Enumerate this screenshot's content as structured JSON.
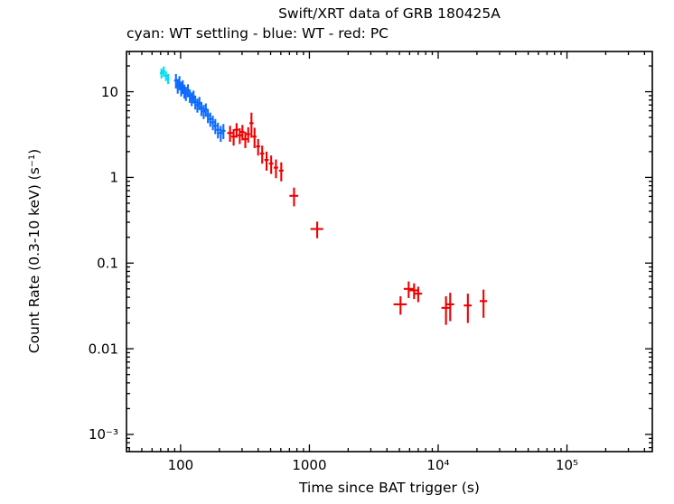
{
  "title": "Swift/XRT data of GRB 180425A",
  "subtitle": "cyan: WT settling - blue: WT - red: PC",
  "chart_data": {
    "type": "scatter",
    "title": "Swift/XRT data of GRB 180425A",
    "subtitle": "cyan: WT settling - blue: WT - red: PC",
    "xlabel": "Time since BAT trigger (s)",
    "ylabel": "Count Rate (0.3-10 keV) (s⁻¹)",
    "xscale": "log",
    "yscale": "log",
    "xlim": [
      38,
      460000
    ],
    "ylim": [
      0.00063,
      29.5
    ],
    "grid": false,
    "legend_position": "none",
    "x_ticks": [
      {
        "value": 100,
        "label": "100"
      },
      {
        "value": 1000,
        "label": "1000"
      },
      {
        "value": 10000,
        "label": "10⁴"
      },
      {
        "value": 100000,
        "label": "10⁵"
      }
    ],
    "y_ticks": [
      {
        "value": 10,
        "label": "10"
      },
      {
        "value": 1,
        "label": "1"
      },
      {
        "value": 0.1,
        "label": "0.1"
      },
      {
        "value": 0.01,
        "label": "0.01"
      },
      {
        "value": 0.001,
        "label": "10⁻³"
      }
    ],
    "point_format": "[time_s, count_rate, time_err, rate_err]",
    "series": [
      {
        "name": "WT settling",
        "color": "#00e0ee",
        "points": [
          [
            71,
            16.5,
            2,
            2.2
          ],
          [
            74,
            17.3,
            2,
            2.4
          ],
          [
            77,
            15.3,
            2,
            2.0
          ],
          [
            80,
            14.2,
            2,
            1.9
          ]
        ]
      },
      {
        "name": "WT",
        "color": "#0d6bff",
        "points": [
          [
            92,
            13.5,
            3,
            2.6
          ],
          [
            95,
            11.8,
            3,
            2.3
          ],
          [
            98,
            12.8,
            3,
            2.4
          ],
          [
            101,
            10.9,
            3,
            2.1
          ],
          [
            104,
            11.5,
            3,
            2.1
          ],
          [
            107,
            10.2,
            3,
            1.9
          ],
          [
            110,
            9.6,
            3,
            1.8
          ],
          [
            114,
            10.4,
            3,
            1.8
          ],
          [
            118,
            9.0,
            4,
            1.6
          ],
          [
            122,
            8.3,
            4,
            1.5
          ],
          [
            126,
            8.8,
            4,
            1.5
          ],
          [
            130,
            7.6,
            4,
            1.4
          ],
          [
            135,
            7.0,
            4,
            1.3
          ],
          [
            140,
            7.4,
            5,
            1.3
          ],
          [
            145,
            6.4,
            5,
            1.2
          ],
          [
            151,
            5.9,
            5,
            1.1
          ],
          [
            157,
            6.2,
            5,
            1.1
          ],
          [
            163,
            5.3,
            6,
            1.0
          ],
          [
            170,
            4.8,
            6,
            0.9
          ],
          [
            178,
            4.4,
            7,
            0.85
          ],
          [
            186,
            4.0,
            7,
            0.8
          ],
          [
            195,
            3.6,
            8,
            0.75
          ],
          [
            205,
            3.3,
            8,
            0.7
          ],
          [
            215,
            3.5,
            8,
            0.7
          ]
        ]
      },
      {
        "name": "PC",
        "color": "#ee0000",
        "points": [
          [
            242,
            3.3,
            12,
            0.7
          ],
          [
            258,
            3.0,
            11,
            0.65
          ],
          [
            272,
            3.6,
            11,
            0.7
          ],
          [
            288,
            3.1,
            11,
            0.65
          ],
          [
            302,
            3.4,
            11,
            0.7
          ],
          [
            318,
            2.8,
            12,
            0.6
          ],
          [
            335,
            3.2,
            12,
            0.65
          ],
          [
            355,
            4.3,
            13,
            1.4
          ],
          [
            375,
            3.0,
            13,
            0.8
          ],
          [
            400,
            2.3,
            15,
            0.5
          ],
          [
            430,
            1.9,
            16,
            0.45
          ],
          [
            465,
            1.6,
            18,
            0.4
          ],
          [
            505,
            1.45,
            20,
            0.35
          ],
          [
            550,
            1.3,
            22,
            0.32
          ],
          [
            605,
            1.2,
            25,
            0.3
          ],
          [
            760,
            0.61,
            60,
            0.15
          ],
          [
            1150,
            0.25,
            130,
            0.055
          ],
          [
            5100,
            0.033,
            600,
            0.008
          ],
          [
            5900,
            0.05,
            500,
            0.011
          ],
          [
            6500,
            0.048,
            500,
            0.01
          ],
          [
            7000,
            0.044,
            500,
            0.009
          ],
          [
            11500,
            0.03,
            900,
            0.011
          ],
          [
            12400,
            0.033,
            900,
            0.012
          ],
          [
            17000,
            0.032,
            1200,
            0.012
          ],
          [
            22500,
            0.036,
            1500,
            0.013
          ]
        ]
      }
    ]
  }
}
